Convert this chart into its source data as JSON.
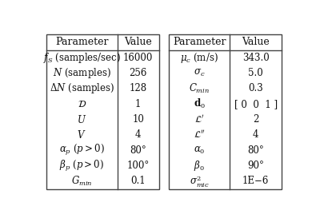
{
  "left_headers": [
    "Parameter",
    "Value"
  ],
  "right_headers": [
    "Parameter",
    "Value"
  ],
  "left_rows": [
    [
      "$f_S$ (samples/sec)",
      "16000"
    ],
    [
      "$N$ (samples)",
      "256"
    ],
    [
      "$\\Delta N$ (samples)",
      "128"
    ],
    [
      "$\\mathcal{D}$",
      "1"
    ],
    [
      "$U$",
      "10"
    ],
    [
      "$V$",
      "4"
    ],
    [
      "$\\alpha_p\\ (p>0)$",
      "80°"
    ],
    [
      "$\\beta_p\\ (p>0)$",
      "100°"
    ],
    [
      "$G_{min}$",
      "0.1"
    ]
  ],
  "right_rows": [
    [
      "$\\mu_c$ (m/s)",
      "343.0"
    ],
    [
      "$\\sigma_c$",
      "5.0"
    ],
    [
      "$C_{min}$",
      "0.3"
    ],
    [
      "$\\mathbf{d}_0$",
      "[ 0  0  1 ]"
    ],
    [
      "$\\mathcal{L}'$",
      "2"
    ],
    [
      "$\\mathcal{L}''$",
      "4"
    ],
    [
      "$\\alpha_0$",
      "80°"
    ],
    [
      "$\\beta_0$",
      "90°"
    ],
    [
      "$\\sigma^2_{mic}$",
      "1E−6"
    ]
  ],
  "text_color": "#111111",
  "font_size": 8.5,
  "header_font_size": 9.0
}
